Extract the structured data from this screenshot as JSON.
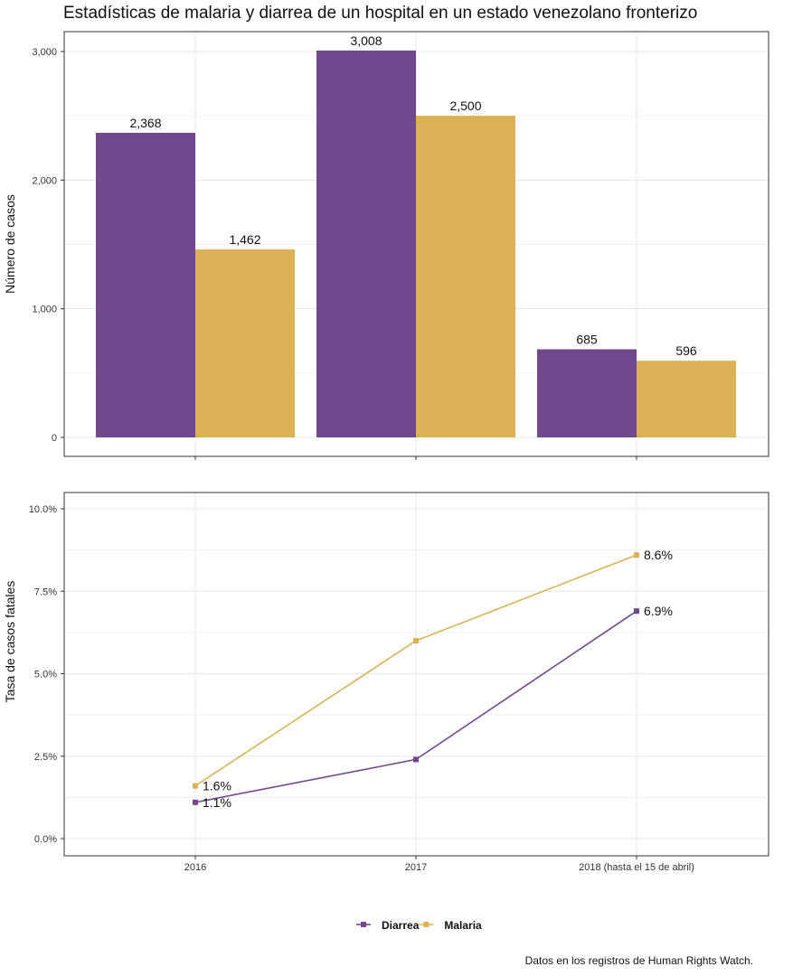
{
  "title": "Estadísticas de malaria y diarrea de un hospital en un estado venezolano fronterizo",
  "source": "Datos en los registros de Human Rights Watch.",
  "colors": {
    "Diarrea": "#72488c",
    "Malaria": "#d8b255"
  },
  "chart_data": [
    {
      "type": "bar",
      "ylabel": "Número de casos",
      "ylim": [
        0,
        3150
      ],
      "yticks": [
        0,
        1000,
        2000,
        3000
      ],
      "ytick_labels": [
        "0",
        "1,000",
        "2,000",
        "3,000"
      ],
      "grid": true,
      "categories": [
        "2016",
        "2017",
        "2018 (hasta el 15 de abril)"
      ],
      "series": [
        {
          "name": "Diarrea",
          "values": [
            2368,
            3008,
            685
          ],
          "labels": [
            "2,368",
            "3,008",
            "685"
          ]
        },
        {
          "name": "Malaria",
          "values": [
            1462,
            2500,
            596
          ],
          "labels": [
            "1,462",
            "2,500",
            "596"
          ]
        }
      ]
    },
    {
      "type": "line",
      "ylabel": "Tasa de casos fatales",
      "ylim": [
        -0.5,
        10.5
      ],
      "yticks": [
        0,
        2.5,
        5,
        7.5,
        10
      ],
      "ytick_labels": [
        "0.0%",
        "2.5%",
        "5.0%",
        "7.5%",
        "10.0%"
      ],
      "grid": true,
      "categories": [
        "2016",
        "2017",
        "2018 (hasta el 15 de abril)"
      ],
      "series": [
        {
          "name": "Diarrea",
          "values": [
            1.1,
            2.4,
            6.9
          ],
          "labels": [
            "1.1%",
            "",
            "6.9%"
          ]
        },
        {
          "name": "Malaria",
          "values": [
            1.6,
            6.0,
            8.6
          ],
          "labels": [
            "1.6%",
            "",
            "8.6%"
          ]
        }
      ],
      "legend": "bottom"
    }
  ]
}
